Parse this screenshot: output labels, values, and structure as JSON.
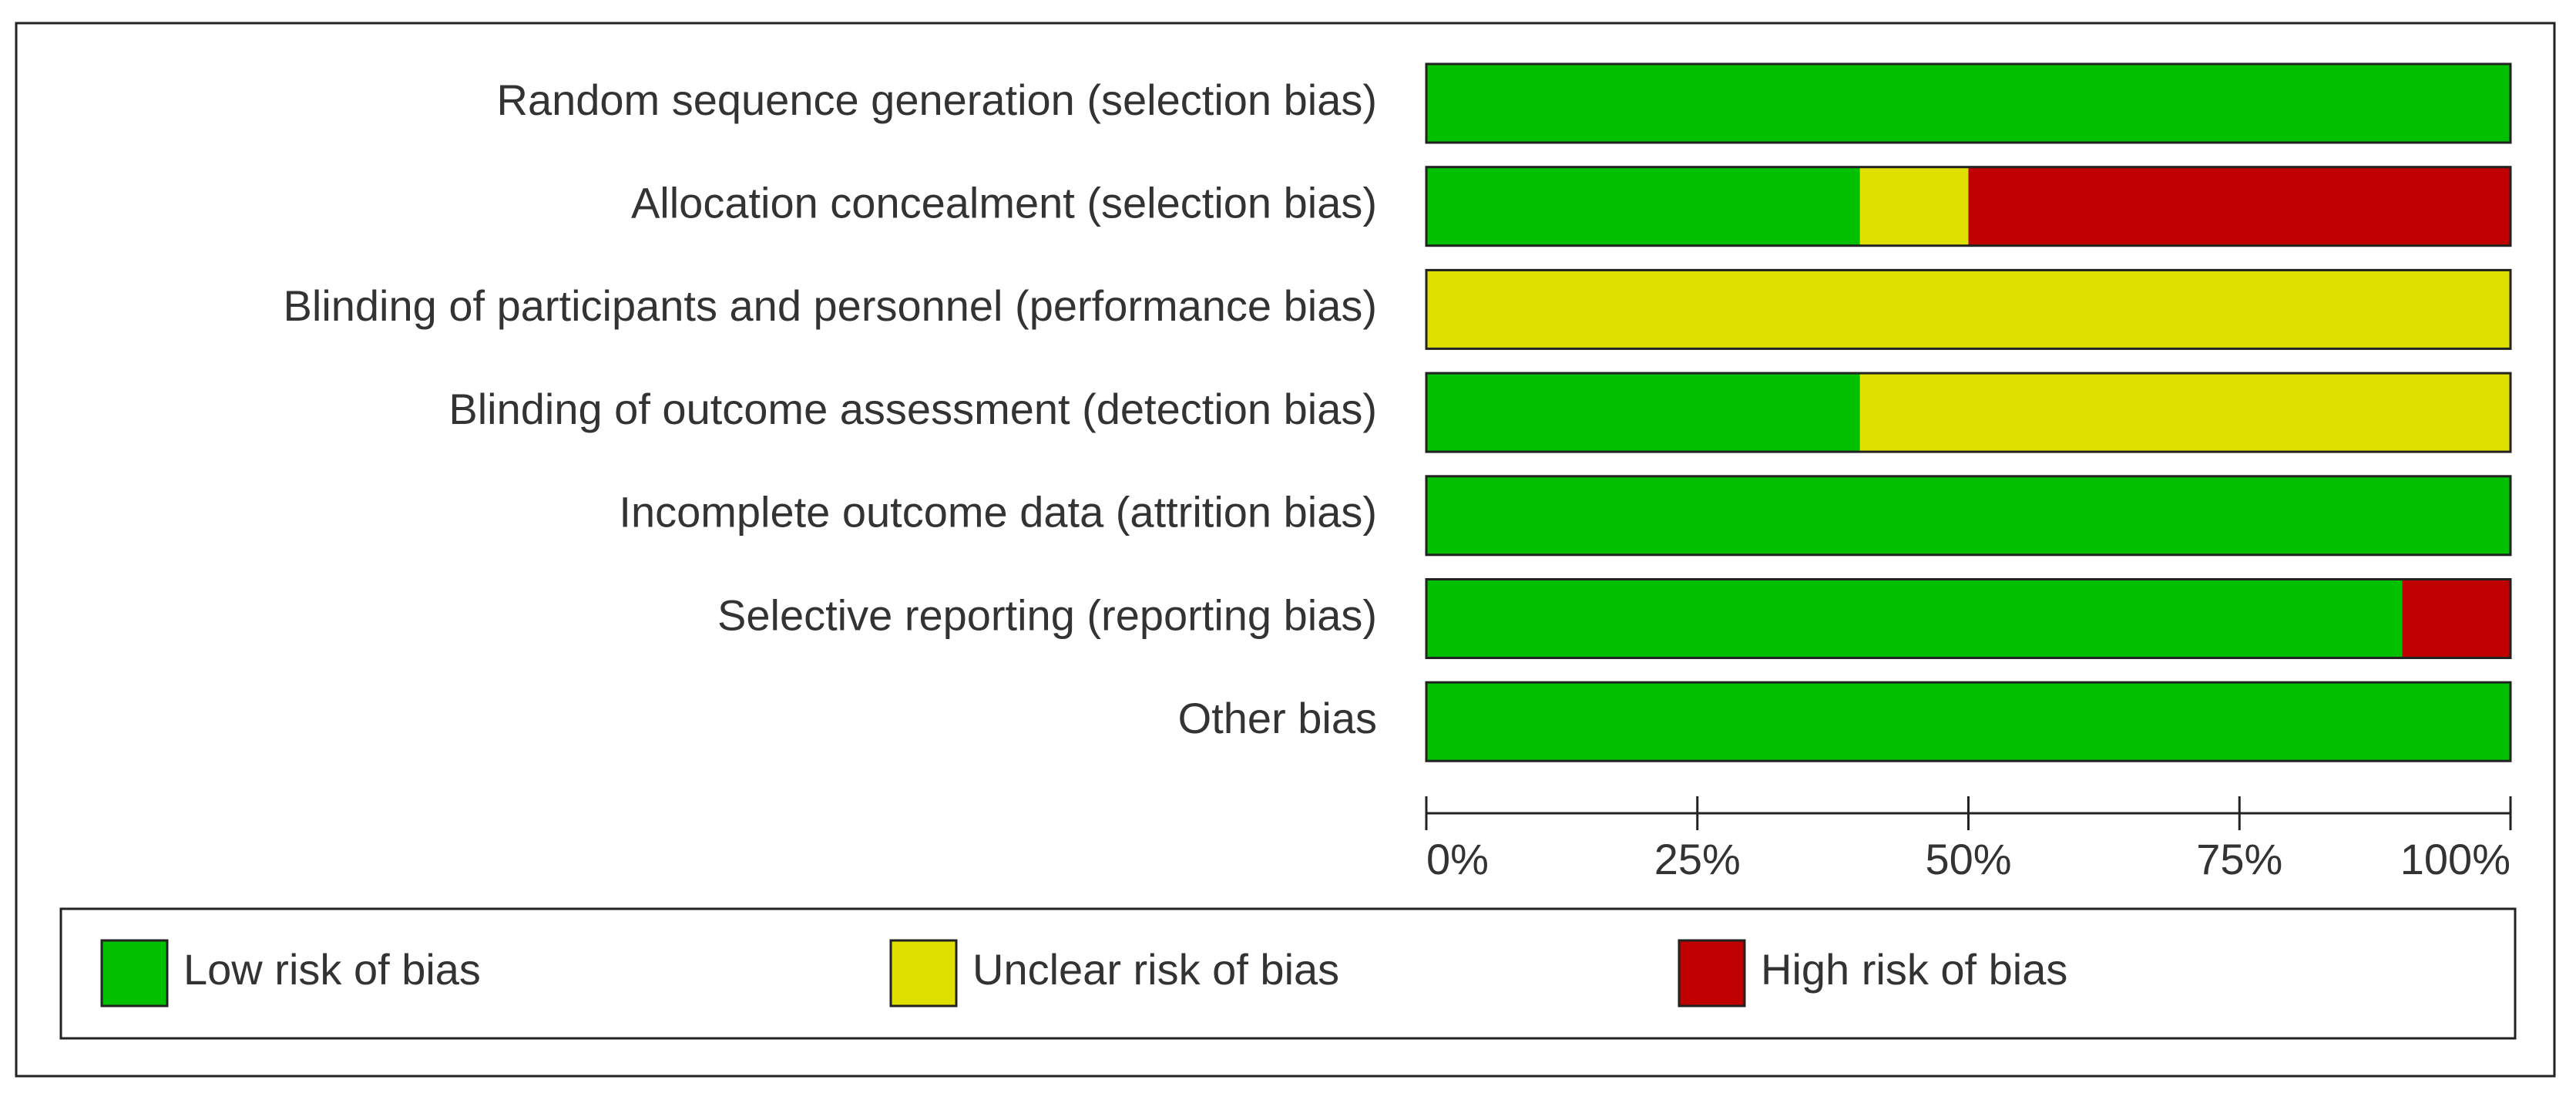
{
  "chart_data": {
    "type": "stacked_bar_horizontal",
    "categories": [
      "Random sequence generation (selection bias)",
      "Allocation concealment (selection bias)",
      "Blinding of participants and personnel (performance bias)",
      "Blinding of outcome assessment (detection bias)",
      "Incomplete outcome data (attrition bias)",
      "Selective reporting (reporting bias)",
      "Other bias"
    ],
    "series": [
      {
        "name": "Low risk of bias",
        "color": "#00c000",
        "values": [
          100,
          40,
          0,
          40,
          100,
          90,
          100
        ]
      },
      {
        "name": "Unclear risk of bias",
        "color": "#e0e000",
        "values": [
          0,
          10,
          100,
          60,
          0,
          0,
          0
        ]
      },
      {
        "name": "High risk of bias",
        "color": "#c00000",
        "values": [
          0,
          50,
          0,
          0,
          0,
          10,
          0
        ]
      }
    ],
    "xlim": [
      0,
      100
    ],
    "xticks": [
      {
        "value": 0,
        "label": "0%"
      },
      {
        "value": 25,
        "label": "25%"
      },
      {
        "value": 50,
        "label": "50%"
      },
      {
        "value": 75,
        "label": "75%"
      },
      {
        "value": 100,
        "label": "100%"
      }
    ]
  }
}
